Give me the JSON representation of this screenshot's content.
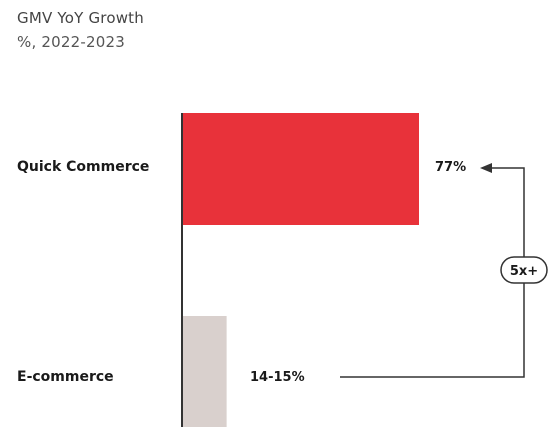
{
  "chart_data": {
    "type": "bar",
    "orientation": "horizontal",
    "title": "GMV YoY Growth",
    "subtitle": "%, 2022-2023",
    "categories": [
      "Quick Commerce",
      "E-commerce"
    ],
    "values": [
      77,
      14.5
    ],
    "value_labels": [
      "77%",
      "14-15%"
    ],
    "xlim": [
      0,
      100
    ],
    "grid": false,
    "legend": "none",
    "annotation": {
      "text": "5x+",
      "from": "E-commerce",
      "to": "Quick Commerce"
    },
    "colors": {
      "Quick Commerce": "#e8323a",
      "E-commerce": "#d9d0cd",
      "axis": "#333333",
      "connector": "#333333"
    }
  }
}
